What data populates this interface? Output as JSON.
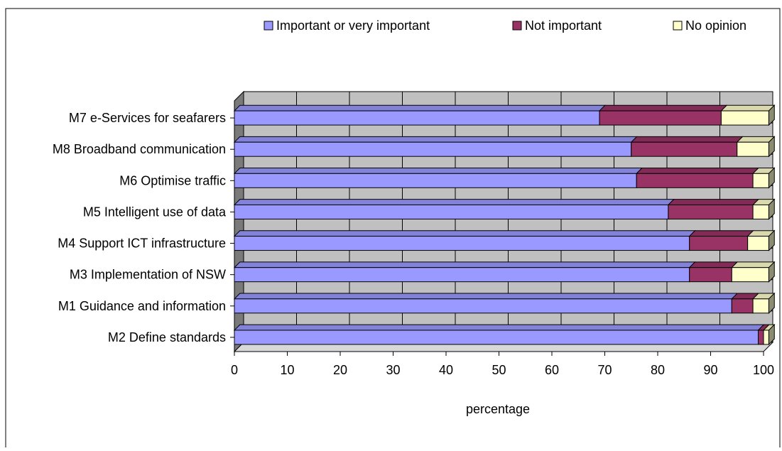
{
  "chart_data": {
    "type": "bar",
    "orientation": "horizontal",
    "stacked": true,
    "three_d": true,
    "title": "",
    "xlabel": "percentage",
    "ylabel": "",
    "xlim": [
      0,
      100
    ],
    "xticks": [
      "0",
      "10",
      "20",
      "30",
      "40",
      "50",
      "60",
      "70",
      "80",
      "90",
      "100"
    ],
    "grid": "vertical gridlines",
    "legend_position": "top",
    "categories": [
      "M7 e-Services for seafarers",
      "M8 Broadband communication",
      "M6 Optimise traffic",
      "M5 Intelligent use of data",
      "M4 Support ICT infrastructure",
      "M3 Implementation of NSW",
      "M1 Guidance and information",
      "M2 Define standards"
    ],
    "series": [
      {
        "name": "Important or very important",
        "color": "#9999ff",
        "values": [
          69,
          75,
          76,
          82,
          86,
          86,
          94,
          99
        ]
      },
      {
        "name": "Not important",
        "color": "#993366",
        "values": [
          23,
          20,
          22,
          16,
          11,
          8,
          4,
          1
        ]
      },
      {
        "name": "No opinion",
        "color": "#ffffcc",
        "values": [
          9,
          6,
          3,
          3,
          4,
          7,
          3,
          1
        ]
      }
    ]
  }
}
